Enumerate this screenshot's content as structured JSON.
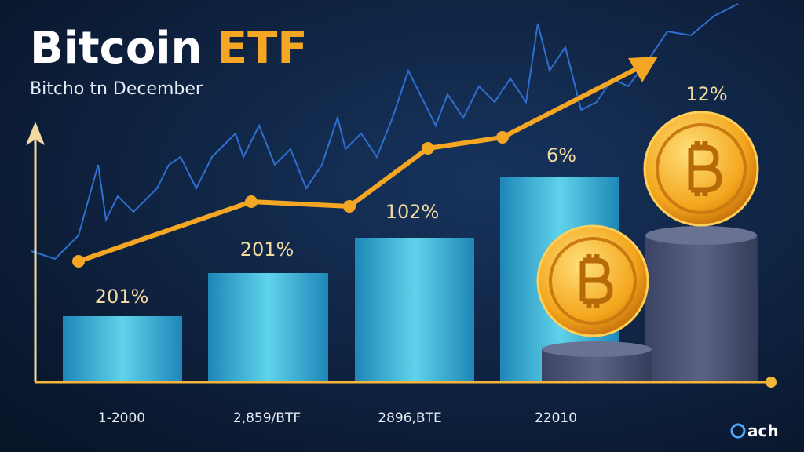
{
  "header": {
    "title_main": "Bitcoin ",
    "title_accent": "ETF",
    "subtitle": "Bitcho tn December"
  },
  "bar_labels": [
    "201%",
    "201%",
    "102%",
    "6%",
    "12%"
  ],
  "x_labels": [
    "1-2000",
    "2,859/BTF",
    "2896,BTE",
    "22010"
  ],
  "logo": "ach"
}
